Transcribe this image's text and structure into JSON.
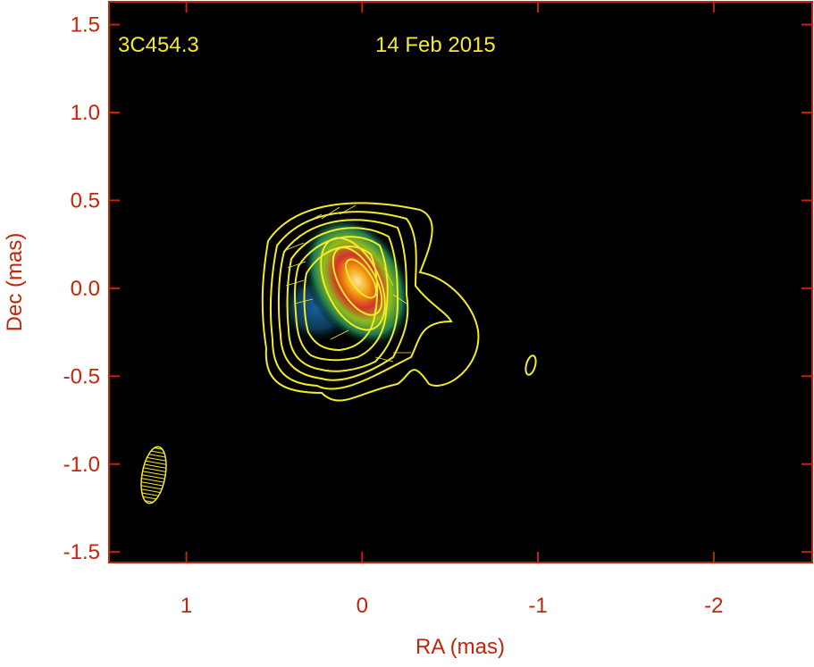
{
  "chart_data": {
    "type": "image",
    "annotations": [
      "3C454.3",
      "14 Feb 2015"
    ],
    "xlabel": "RA (mas)",
    "ylabel": "Dec (mas)",
    "xlim": [
      1.44,
      -2.56
    ],
    "xticks": [
      1,
      0,
      -1,
      -2
    ],
    "ylim": [
      -1.56,
      1.63
    ],
    "yticks": [
      1.5,
      {
        "value": 1,
        "label": "1.0"
      },
      0.5,
      {
        "value": 0,
        "label": "0.0"
      },
      -0.5,
      {
        "value": -1,
        "label": "-1.0"
      },
      -1.5
    ]
  }
}
